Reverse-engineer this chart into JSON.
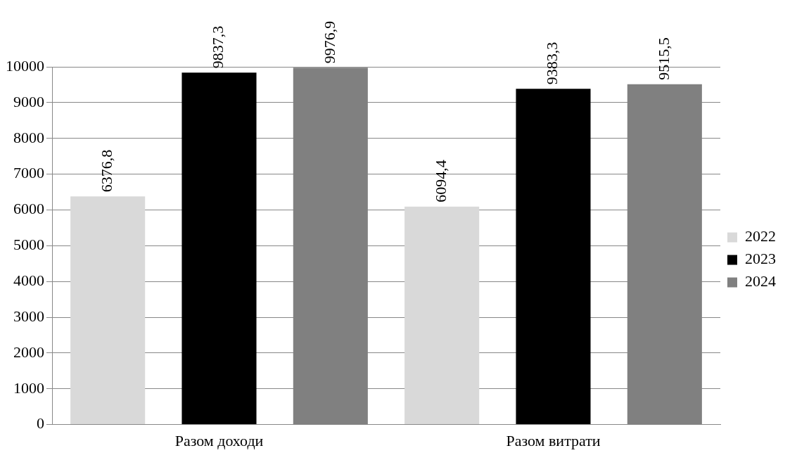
{
  "chart_data": {
    "type": "bar",
    "categories": [
      "Разом доходи",
      "Разом витрати"
    ],
    "series": [
      {
        "name": "2022",
        "color": "#d9d9d9",
        "values": [
          6376.8,
          6094.4
        ],
        "value_labels": [
          "6376,8",
          "6094,4"
        ]
      },
      {
        "name": "2023",
        "color": "#000000",
        "values": [
          9837.3,
          9383.3
        ],
        "value_labels": [
          "9837,3",
          "9383,3"
        ]
      },
      {
        "name": "2024",
        "color": "#808080",
        "values": [
          9976.9,
          9515.5
        ],
        "value_labels": [
          "9976,9",
          "9515,5"
        ]
      }
    ],
    "ylim": [
      0,
      10000
    ],
    "yticks": [
      0,
      1000,
      2000,
      3000,
      4000,
      5000,
      6000,
      7000,
      8000,
      9000,
      10000
    ],
    "grid": "y",
    "legend": "right"
  }
}
